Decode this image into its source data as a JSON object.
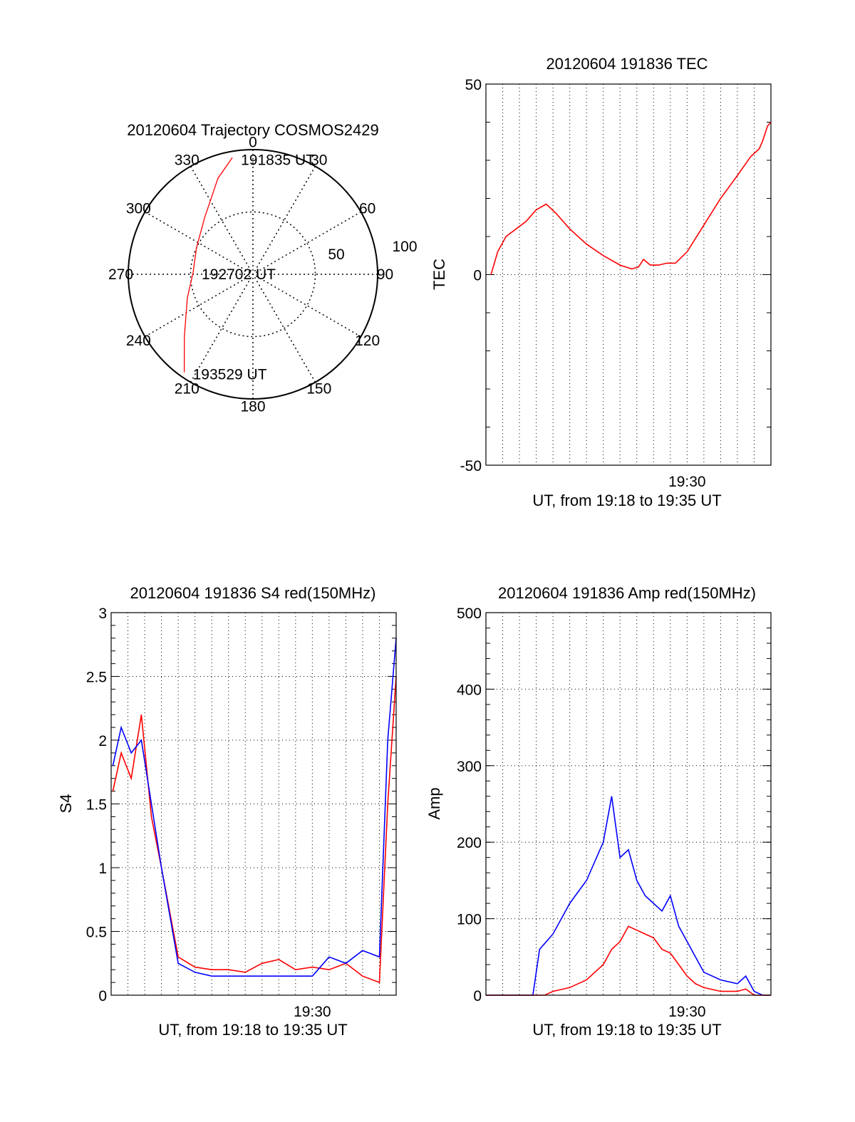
{
  "chart_data": [
    {
      "type": "polar",
      "title": "20120604 Trajectory COSMOS2429",
      "azimuth_labels": [
        "0",
        "30",
        "60",
        "90",
        "120",
        "150",
        "180",
        "210",
        "240",
        "270",
        "300",
        "330"
      ],
      "radius_labels": [
        "50",
        "100"
      ],
      "elevation_rings": [
        50,
        100
      ],
      "trajectory": [
        {
          "az": 350,
          "r": 95
        },
        {
          "az": 340,
          "r": 82
        },
        {
          "az": 320,
          "r": 60
        },
        {
          "az": 295,
          "r": 50
        },
        {
          "az": 272,
          "r": 48
        },
        {
          "az": 250,
          "r": 56
        },
        {
          "az": 228,
          "r": 74
        },
        {
          "az": 215,
          "r": 96
        }
      ],
      "annotations": [
        {
          "text": "191835 UT",
          "az": 350,
          "r": 95
        },
        {
          "text": "192702 UT",
          "az": 272,
          "r": 48
        },
        {
          "text": "193529 UT",
          "az": 215,
          "r": 96
        }
      ],
      "colors": {
        "trajectory": "#ff0000"
      }
    },
    {
      "type": "line",
      "title": "20120604 191836 TEC",
      "xlabel": "UT, from 19:18 to 19:35 UT",
      "ylabel": "TEC",
      "xlim": [
        0,
        17
      ],
      "ylim": [
        -50,
        50
      ],
      "yticks": [
        "50",
        "0",
        "-50"
      ],
      "xticks": [
        {
          "label": "19:30",
          "x": 12
        }
      ],
      "grid": true,
      "series": [
        {
          "color": "#ff0000",
          "x": [
            0.3,
            0.7,
            1.2,
            1.8,
            2.4,
            3.0,
            3.6,
            4.2,
            5.0,
            6.0,
            7.0,
            8.0,
            8.7,
            9.1,
            9.4,
            9.8,
            10.3,
            10.8,
            11.3,
            12.0,
            13.0,
            14.0,
            15.0,
            15.8,
            16.3,
            16.5,
            16.8,
            17.0
          ],
          "y": [
            0,
            6,
            10,
            12,
            14,
            17,
            18.5,
            16,
            12,
            8,
            5,
            2.5,
            1.5,
            2,
            4,
            2.5,
            2.5,
            3,
            3,
            6,
            13,
            20,
            26,
            31,
            33,
            35,
            39,
            40
          ]
        }
      ]
    },
    {
      "type": "line",
      "title": "20120604 191836 S4 red(150MHz)",
      "xlabel": "UT, from 19:18 to 19:35 UT",
      "ylabel": "S4",
      "xlim": [
        0,
        17
      ],
      "ylim": [
        0,
        3
      ],
      "yticks": [
        "0",
        "0.5",
        "1",
        "1.5",
        "2",
        "2.5",
        "3"
      ],
      "xticks": [
        {
          "label": "19:30",
          "x": 12
        }
      ],
      "grid": true,
      "series": [
        {
          "color": "#ff0000",
          "x": [
            0.1,
            0.6,
            1.2,
            1.8,
            2.4,
            3.0,
            4.0,
            5.0,
            6.0,
            7.0,
            8.0,
            9.0,
            10.0,
            11.0,
            12.0,
            13.0,
            14.0,
            15.0,
            16.0,
            16.5,
            17.0
          ],
          "y": [
            1.6,
            1.9,
            1.7,
            2.2,
            1.4,
            1.0,
            0.3,
            0.22,
            0.2,
            0.2,
            0.18,
            0.25,
            0.28,
            0.2,
            0.22,
            0.2,
            0.25,
            0.15,
            0.1,
            1.5,
            2.5
          ]
        },
        {
          "color": "#0000ff",
          "x": [
            0.1,
            0.6,
            1.2,
            1.8,
            2.4,
            3.0,
            4.0,
            5.0,
            6.0,
            7.0,
            8.0,
            9.0,
            10.0,
            11.0,
            12.0,
            13.0,
            14.0,
            15.0,
            16.0,
            16.5,
            17.0
          ],
          "y": [
            1.8,
            2.1,
            1.9,
            2.0,
            1.5,
            1.0,
            0.25,
            0.18,
            0.15,
            0.15,
            0.15,
            0.15,
            0.15,
            0.15,
            0.15,
            0.3,
            0.25,
            0.35,
            0.3,
            2.0,
            2.8
          ]
        }
      ]
    },
    {
      "type": "line",
      "title": "20120604 191836 Amp red(150MHz)",
      "xlabel": "UT, from 19:18 to 19:35 UT",
      "ylabel": "Amp",
      "xlim": [
        0,
        17
      ],
      "ylim": [
        0,
        500
      ],
      "yticks": [
        "0",
        "100",
        "200",
        "300",
        "400",
        "500"
      ],
      "xticks": [
        {
          "label": "19:30",
          "x": 12
        }
      ],
      "grid": true,
      "series": [
        {
          "color": "#0000ff",
          "x": [
            0,
            1,
            2,
            2.8,
            3.2,
            4,
            5,
            6,
            7,
            7.5,
            8,
            8.5,
            9,
            9.5,
            10,
            10.5,
            11,
            11.5,
            12,
            12.5,
            13,
            14,
            15,
            15.5,
            16,
            16.5,
            17
          ],
          "y": [
            0,
            0,
            0,
            0,
            60,
            80,
            120,
            150,
            200,
            260,
            180,
            190,
            150,
            130,
            120,
            110,
            130,
            90,
            70,
            50,
            30,
            20,
            15,
            25,
            5,
            0,
            0
          ]
        },
        {
          "color": "#ff0000",
          "x": [
            0,
            1,
            2,
            3.5,
            4,
            5,
            6,
            7,
            7.5,
            8,
            8.5,
            9,
            9.5,
            10,
            10.5,
            11,
            11.5,
            12,
            12.5,
            13,
            14,
            15,
            15.5,
            16,
            17
          ],
          "y": [
            0,
            0,
            0,
            0,
            5,
            10,
            20,
            40,
            60,
            70,
            90,
            85,
            80,
            75,
            60,
            55,
            40,
            25,
            15,
            10,
            5,
            5,
            8,
            0,
            0
          ]
        }
      ]
    }
  ]
}
